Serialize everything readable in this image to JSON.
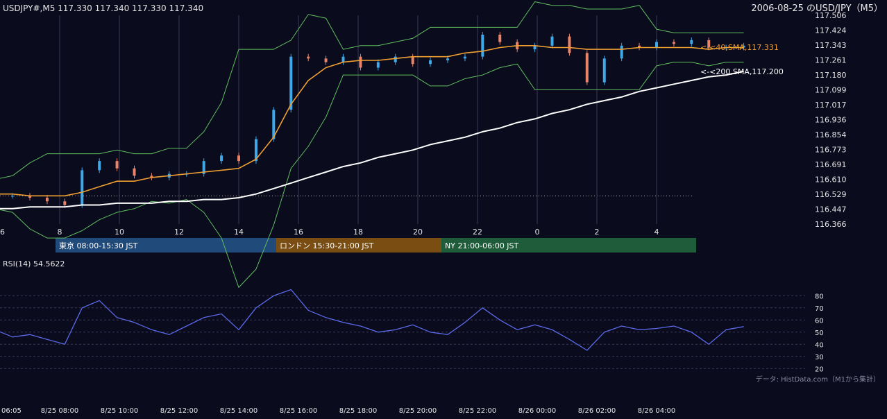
{
  "header": {
    "symbol_ohlc": "USDJPY#,M5 117.330 117.340 117.330 117.340",
    "date_title": "2006-08-25 のUSD/JPY（M5）"
  },
  "price_axis": {
    "ticks": [
      "117.506",
      "117.424",
      "117.343",
      "117.261",
      "117.180",
      "117.099",
      "117.017",
      "116.936",
      "116.854",
      "116.773",
      "116.691",
      "116.610",
      "116.529",
      "116.447",
      "116.366"
    ],
    "ylim": [
      116.366,
      117.506
    ]
  },
  "hour_axis": {
    "labels": [
      "6",
      "8",
      "10",
      "12",
      "14",
      "16",
      "18",
      "20",
      "22",
      "0",
      "2",
      "4"
    ]
  },
  "time_axis": {
    "labels": [
      "06:05",
      "8/25 08:00",
      "8/25 10:00",
      "8/25 12:00",
      "8/25 14:00",
      "8/25 16:00",
      "8/25 18:00",
      "8/25 20:00",
      "8/25 22:00",
      "8/26 00:00",
      "8/26 02:00",
      "8/26 04:00"
    ]
  },
  "sessions": [
    {
      "label": "東京 08:00-15:30 JST",
      "color": "#1f4a7a"
    },
    {
      "label": "ロンドン 15:30-21:00 JST",
      "color": "#7a4e12"
    },
    {
      "label": "NY 21:00-06:00 JST",
      "color": "#1f5c3a"
    }
  ],
  "ma_labels": {
    "sma40": "<-<40,SMA,117.331",
    "sma200": "<-<200,SMA,117.200"
  },
  "rsi": {
    "title": "RSI(14) 54.5622",
    "ticks": [
      "80",
      "70",
      "60",
      "50",
      "40",
      "30",
      "20"
    ],
    "ylim": [
      15,
      95
    ]
  },
  "credit": "データ: HistData.com（M1から集計）",
  "colors": {
    "background": "#0b0b1e",
    "up_candle": "#3fa8e8",
    "down_candle": "#e8846a",
    "sma40": "#f0a030",
    "sma200": "#ffffff",
    "bollinger": "#5fbf5f",
    "rsi_line": "#5a6ae8",
    "grid": "#3a3a55"
  },
  "chart_data": [
    {
      "type": "candlestick",
      "title": "USDJPY#,M5",
      "x_unit": "hour (JST)",
      "ylim": [
        116.366,
        117.506
      ],
      "x": [
        5.25,
        5.83,
        6.42,
        7.0,
        7.58,
        8.17,
        8.75,
        9.33,
        9.92,
        10.5,
        11.08,
        11.67,
        12.25,
        12.83,
        13.42,
        14.0,
        14.58,
        15.17,
        15.75,
        16.33,
        16.92,
        17.5,
        18.08,
        18.67,
        19.25,
        19.83,
        20.42,
        21.0,
        21.58,
        22.17,
        22.75,
        23.33,
        23.92,
        24.5,
        25.08,
        25.67,
        26.25,
        26.83,
        27.42,
        28.0,
        28.58,
        29.17,
        29.75,
        30.33,
        30.92
      ],
      "close": [
        116.53,
        116.52,
        116.52,
        116.51,
        116.49,
        116.47,
        116.66,
        116.71,
        116.67,
        116.63,
        116.62,
        116.64,
        116.64,
        116.71,
        116.74,
        116.71,
        116.83,
        116.99,
        117.28,
        117.27,
        117.25,
        117.28,
        117.22,
        117.25,
        117.28,
        117.24,
        117.26,
        117.27,
        117.28,
        117.4,
        117.36,
        117.32,
        117.34,
        117.39,
        117.3,
        117.14,
        117.27,
        117.34,
        117.33,
        117.36,
        117.35,
        117.37,
        117.33,
        117.33,
        117.34
      ],
      "series": [
        {
          "name": "SMA 40",
          "values": [
            116.53,
            116.53,
            116.53,
            116.52,
            116.52,
            116.52,
            116.54,
            116.57,
            116.6,
            116.6,
            116.62,
            116.63,
            116.64,
            116.65,
            116.66,
            116.67,
            116.72,
            116.84,
            117.02,
            117.15,
            117.22,
            117.25,
            117.26,
            117.26,
            117.27,
            117.28,
            117.28,
            117.28,
            117.3,
            117.31,
            117.33,
            117.34,
            117.34,
            117.33,
            117.33,
            117.32,
            117.32,
            117.32,
            117.33,
            117.33,
            117.33,
            117.33,
            117.32,
            117.33,
            117.33
          ]
        },
        {
          "name": "SMA 200",
          "values": [
            116.44,
            116.45,
            116.45,
            116.46,
            116.46,
            116.46,
            116.47,
            116.47,
            116.48,
            116.48,
            116.48,
            116.49,
            116.49,
            116.5,
            116.5,
            116.51,
            116.53,
            116.56,
            116.59,
            116.62,
            116.65,
            116.68,
            116.7,
            116.73,
            116.75,
            116.77,
            116.8,
            116.82,
            116.84,
            116.87,
            116.89,
            116.92,
            116.94,
            116.97,
            116.99,
            117.02,
            117.04,
            117.06,
            117.09,
            117.11,
            117.13,
            117.15,
            117.17,
            117.18,
            117.2
          ]
        }
      ]
    },
    {
      "type": "line",
      "title": "RSI(14)",
      "ylim": [
        15,
        95
      ],
      "x": [
        5.25,
        5.83,
        6.42,
        7.0,
        7.58,
        8.17,
        8.75,
        9.33,
        9.92,
        10.5,
        11.08,
        11.67,
        12.25,
        12.83,
        13.42,
        14.0,
        14.58,
        15.17,
        15.75,
        16.33,
        16.92,
        17.5,
        18.08,
        18.67,
        19.25,
        19.83,
        20.42,
        21.0,
        21.58,
        22.17,
        22.75,
        23.33,
        23.92,
        24.5,
        25.08,
        25.67,
        26.25,
        26.83,
        27.42,
        28.0,
        28.58,
        29.17,
        29.75,
        30.33,
        30.92
      ],
      "series": [
        {
          "name": "RSI(14)",
          "values": [
            50,
            52,
            46,
            48,
            44,
            40,
            70,
            76,
            62,
            58,
            52,
            48,
            55,
            62,
            65,
            52,
            70,
            80,
            85,
            68,
            62,
            58,
            55,
            50,
            52,
            56,
            50,
            48,
            58,
            70,
            60,
            52,
            56,
            52,
            44,
            35,
            50,
            55,
            52,
            53,
            55,
            50,
            40,
            52,
            54.56
          ]
        }
      ]
    }
  ]
}
